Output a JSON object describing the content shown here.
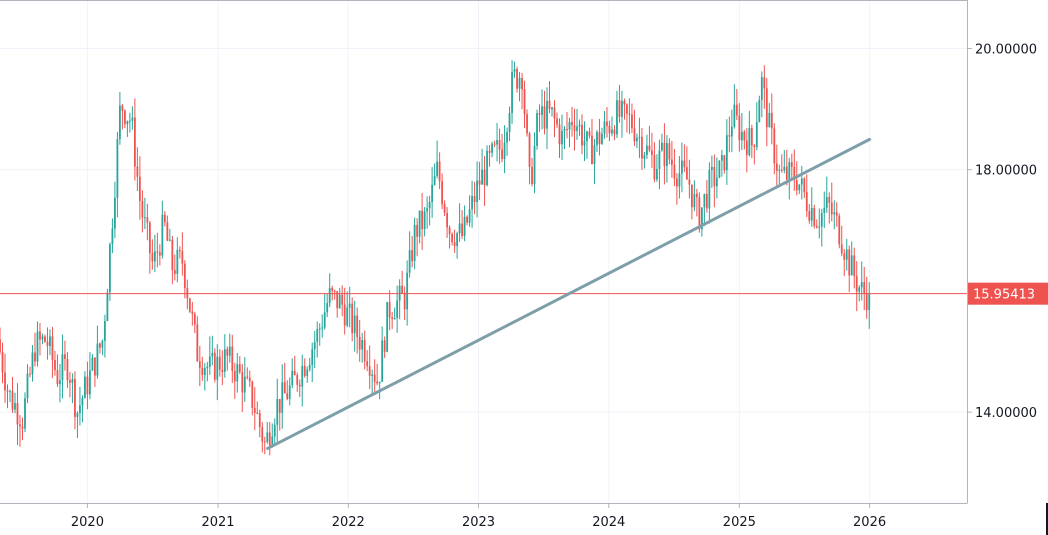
{
  "chart_data": {
    "type": "candlestick",
    "timeframe": "weekly",
    "x_range": [
      "2019-05-01",
      "2026-10-01"
    ],
    "y_range": [
      12.5,
      20.8
    ],
    "y_ticks": [
      {
        "value": 14.0,
        "label": "14.00000"
      },
      {
        "value": 18.0,
        "label": "18.00000"
      },
      {
        "value": 20.0,
        "label": "20.00000"
      }
    ],
    "x_ticks": [
      {
        "date": "2020-01-01",
        "label": "2020"
      },
      {
        "date": "2021-01-01",
        "label": "2021"
      },
      {
        "date": "2022-01-01",
        "label": "2022"
      },
      {
        "date": "2023-01-01",
        "label": "2023"
      },
      {
        "date": "2024-01-01",
        "label": "2024"
      },
      {
        "date": "2025-01-01",
        "label": "2025"
      },
      {
        "date": "2026-01-01",
        "label": "2026"
      }
    ],
    "current_price": {
      "value": 15.95413,
      "label": "15.95413",
      "color": "#ef5350"
    },
    "trendline": {
      "start": {
        "date": "2021-05-20",
        "value": 13.4
      },
      "end": {
        "date": "2026-01-01",
        "value": 18.5
      },
      "color": "#7e9faa"
    },
    "colors": {
      "up": "#26a69a",
      "down": "#ef5350",
      "axis": "#b2b5be"
    },
    "price_path": [
      [
        "2019-05-01",
        15.2
      ],
      [
        "2019-06-01",
        14.3
      ],
      [
        "2019-07-10",
        13.9
      ],
      [
        "2019-08-15",
        15.1
      ],
      [
        "2019-09-15",
        15.2
      ],
      [
        "2019-10-15",
        14.6
      ],
      [
        "2019-11-15",
        14.8
      ],
      [
        "2019-12-10",
        14.0
      ],
      [
        "2020-01-15",
        14.6
      ],
      [
        "2020-02-20",
        15.2
      ],
      [
        "2020-03-15",
        17.0
      ],
      [
        "2020-04-10",
        19.1
      ],
      [
        "2020-05-10",
        18.8
      ],
      [
        "2020-06-05",
        17.4
      ],
      [
        "2020-07-10",
        16.4
      ],
      [
        "2020-08-10",
        17.1
      ],
      [
        "2020-09-01",
        16.4
      ],
      [
        "2020-10-01",
        16.5
      ],
      [
        "2020-11-10",
        15.0
      ],
      [
        "2020-12-15",
        14.7
      ],
      [
        "2021-02-01",
        14.9
      ],
      [
        "2021-03-10",
        14.6
      ],
      [
        "2021-04-15",
        14.2
      ],
      [
        "2021-05-20",
        13.45
      ],
      [
        "2021-06-20",
        14.1
      ],
      [
        "2021-08-01",
        14.4
      ],
      [
        "2021-09-15",
        14.9
      ],
      [
        "2021-10-15",
        15.3
      ],
      [
        "2021-11-15",
        15.9
      ],
      [
        "2021-12-20",
        15.8
      ],
      [
        "2022-02-01",
        15.3
      ],
      [
        "2022-03-01",
        15.0
      ],
      [
        "2022-04-01",
        14.5
      ],
      [
        "2022-05-01",
        15.7
      ],
      [
        "2022-06-15",
        15.9
      ],
      [
        "2022-07-15",
        17.0
      ],
      [
        "2022-08-15",
        17.2
      ],
      [
        "2022-09-15",
        18.0
      ],
      [
        "2022-10-20",
        17.0
      ],
      [
        "2022-11-25",
        16.9
      ],
      [
        "2023-01-10",
        17.8
      ],
      [
        "2023-02-15",
        18.2
      ],
      [
        "2023-03-15",
        18.4
      ],
      [
        "2023-04-15",
        19.5
      ],
      [
        "2023-05-10",
        19.6
      ],
      [
        "2023-06-01",
        17.7
      ],
      [
        "2023-06-25",
        18.9
      ],
      [
        "2023-08-01",
        18.9
      ],
      [
        "2023-09-01",
        18.5
      ],
      [
        "2023-10-01",
        18.9
      ],
      [
        "2023-11-15",
        18.3
      ],
      [
        "2023-12-20",
        18.6
      ],
      [
        "2024-02-01",
        18.9
      ],
      [
        "2024-03-10",
        18.8
      ],
      [
        "2024-04-15",
        18.4
      ],
      [
        "2024-05-15",
        18.1
      ],
      [
        "2024-06-15",
        18.3
      ],
      [
        "2024-07-15",
        18.0
      ],
      [
        "2024-08-20",
        17.8
      ],
      [
        "2024-09-15",
        17.2
      ],
      [
        "2024-10-20",
        17.8
      ],
      [
        "2024-11-20",
        18.0
      ],
      [
        "2024-12-20",
        18.9
      ],
      [
        "2025-01-15",
        18.6
      ],
      [
        "2025-02-15",
        18.4
      ],
      [
        "2025-03-10",
        19.5
      ],
      [
        "2025-04-01",
        18.7
      ],
      [
        "2025-05-01",
        17.9
      ],
      [
        "2025-06-15",
        17.9
      ],
      [
        "2025-07-15",
        17.5
      ],
      [
        "2025-08-15",
        17.2
      ],
      [
        "2025-09-15",
        17.4
      ],
      [
        "2025-10-15",
        17.0
      ],
      [
        "2025-11-15",
        16.4
      ],
      [
        "2025-12-15",
        16.0
      ],
      [
        "2025-12-31",
        15.95
      ]
    ]
  }
}
